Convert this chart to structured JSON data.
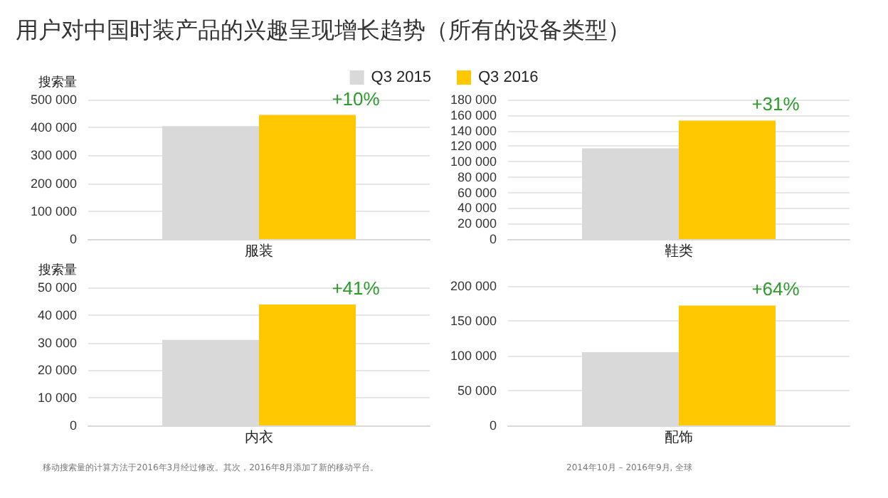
{
  "chart_data": [
    {
      "type": "bar",
      "title": "用户对中国时装产品的兴趣呈现增长趋势（所有的设备类型）",
      "ylabel": "搜索量",
      "categories": [
        "服装"
      ],
      "legend": "top",
      "grid": "y",
      "series": [
        {
          "name": "Q3 2015",
          "color": "#d9d9d9",
          "values": [
            405000
          ]
        },
        {
          "name": "Q3 2016",
          "color": "#ffc800",
          "values": [
            445000
          ]
        }
      ],
      "ylim": [
        0,
        500000
      ],
      "yticks": [
        {
          "value": 0,
          "label": "0"
        },
        {
          "value": 100000,
          "label": "100 000"
        },
        {
          "value": 200000,
          "label": "200 000"
        },
        {
          "value": 300000,
          "label": "300 000"
        },
        {
          "value": 400000,
          "label": "400 000"
        },
        {
          "value": 500000,
          "label": "500 000"
        }
      ],
      "annotations": [
        "+10%"
      ]
    },
    {
      "type": "bar",
      "categories": [
        "鞋类"
      ],
      "grid": "y",
      "series": [
        {
          "color": "#d9d9d9",
          "values": [
            117000
          ]
        },
        {
          "color": "#ffc800",
          "values": [
            153000
          ]
        }
      ],
      "ylim": [
        0,
        180000
      ],
      "yticks": [
        {
          "value": 0,
          "label": "0"
        },
        {
          "value": 20000,
          "label": "20 000"
        },
        {
          "value": 40000,
          "label": "40 000"
        },
        {
          "value": 60000,
          "label": "60 000"
        },
        {
          "value": 80000,
          "label": "80 000"
        },
        {
          "value": 100000,
          "label": "100 000"
        },
        {
          "value": 120000,
          "label": "120 000"
        },
        {
          "value": 140000,
          "label": "140 000"
        },
        {
          "value": 160000,
          "label": "160 000"
        },
        {
          "value": 180000,
          "label": "180 000"
        }
      ],
      "annotations": [
        "+31%"
      ]
    },
    {
      "type": "bar",
      "ylabel": "搜索量",
      "categories": [
        "内衣"
      ],
      "grid": "y",
      "series": [
        {
          "color": "#d9d9d9",
          "values": [
            31000
          ]
        },
        {
          "color": "#ffc800",
          "values": [
            43800
          ]
        }
      ],
      "ylim": [
        0,
        50000
      ],
      "yticks": [
        {
          "value": 0,
          "label": "0"
        },
        {
          "value": 10000,
          "label": "10 000"
        },
        {
          "value": 20000,
          "label": "20 000"
        },
        {
          "value": 30000,
          "label": "30 000"
        },
        {
          "value": 40000,
          "label": "40 000"
        },
        {
          "value": 50000,
          "label": "50 000"
        }
      ],
      "annotations": [
        "+41%",
        "移动搜索量的计算方法于2016年3月经过修改。其次，2016年8月添加了新的移动平台。"
      ]
    },
    {
      "type": "bar",
      "categories": [
        "配饰"
      ],
      "grid": "y",
      "series": [
        {
          "color": "#d9d9d9",
          "values": [
            105000
          ]
        },
        {
          "color": "#ffc800",
          "values": [
            172000
          ]
        }
      ],
      "ylim": [
        0,
        200000
      ],
      "yticks": [
        {
          "value": 0,
          "label": "0"
        },
        {
          "value": 50000,
          "label": "50 000"
        },
        {
          "value": 100000,
          "label": "100 000"
        },
        {
          "value": 150000,
          "label": "150 000"
        },
        {
          "value": 200000,
          "label": "200 000"
        }
      ],
      "annotations": [
        "+64%",
        "2014年10月 – 2016年9月, 全球"
      ]
    }
  ]
}
